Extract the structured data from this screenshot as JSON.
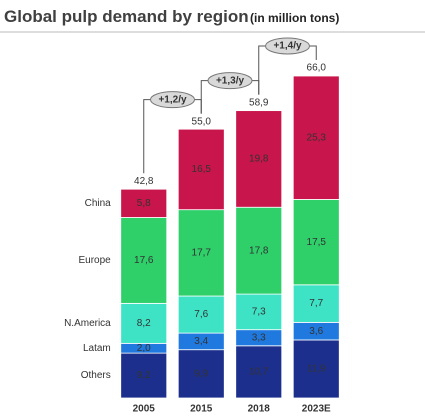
{
  "chart_data": {
    "type": "stacked_bar",
    "title": "Global pulp demand by region",
    "subtitle": "(in million tons)",
    "categories": [
      "2005",
      "2015",
      "2018",
      "2023E"
    ],
    "series": [
      {
        "name": "Others",
        "color": "#1c2f8c",
        "label_color": "#ffffff",
        "values": [
          9.2,
          9.9,
          10.7,
          11.9
        ],
        "value_labels": [
          "9,2",
          "9,9",
          "10,7",
          "11,9"
        ]
      },
      {
        "name": "Latam",
        "color": "#2079de",
        "label_color": "#ffffff",
        "values": [
          2.0,
          3.4,
          3.3,
          3.6
        ],
        "value_labels": [
          "2,0",
          "3,4",
          "3,3",
          "3,6"
        ]
      },
      {
        "name": "N.America",
        "color": "#3ee3c6",
        "label_color": "#333333",
        "values": [
          8.2,
          7.6,
          7.3,
          7.7
        ],
        "value_labels": [
          "8,2",
          "7,6",
          "7,3",
          "7,7"
        ]
      },
      {
        "name": "Europe",
        "color": "#2fcf6a",
        "label_color": "#333333",
        "values": [
          17.6,
          17.7,
          17.8,
          17.5
        ],
        "value_labels": [
          "17,6",
          "17,7",
          "17,8",
          "17,5"
        ]
      },
      {
        "name": "China",
        "color": "#c8154b",
        "label_color": "#ffffff",
        "values": [
          5.8,
          16.5,
          19.8,
          25.3
        ],
        "value_labels": [
          "5,8",
          "16,5",
          "19,8",
          "25,3"
        ]
      }
    ],
    "totals": [
      42.8,
      55.0,
      58.9,
      66.0
    ],
    "total_labels": [
      "42,8",
      "55,0",
      "58,9",
      "66,0"
    ],
    "growth_labels": [
      "+1,2/y",
      "+1,3/y",
      "+1,4/y"
    ]
  }
}
